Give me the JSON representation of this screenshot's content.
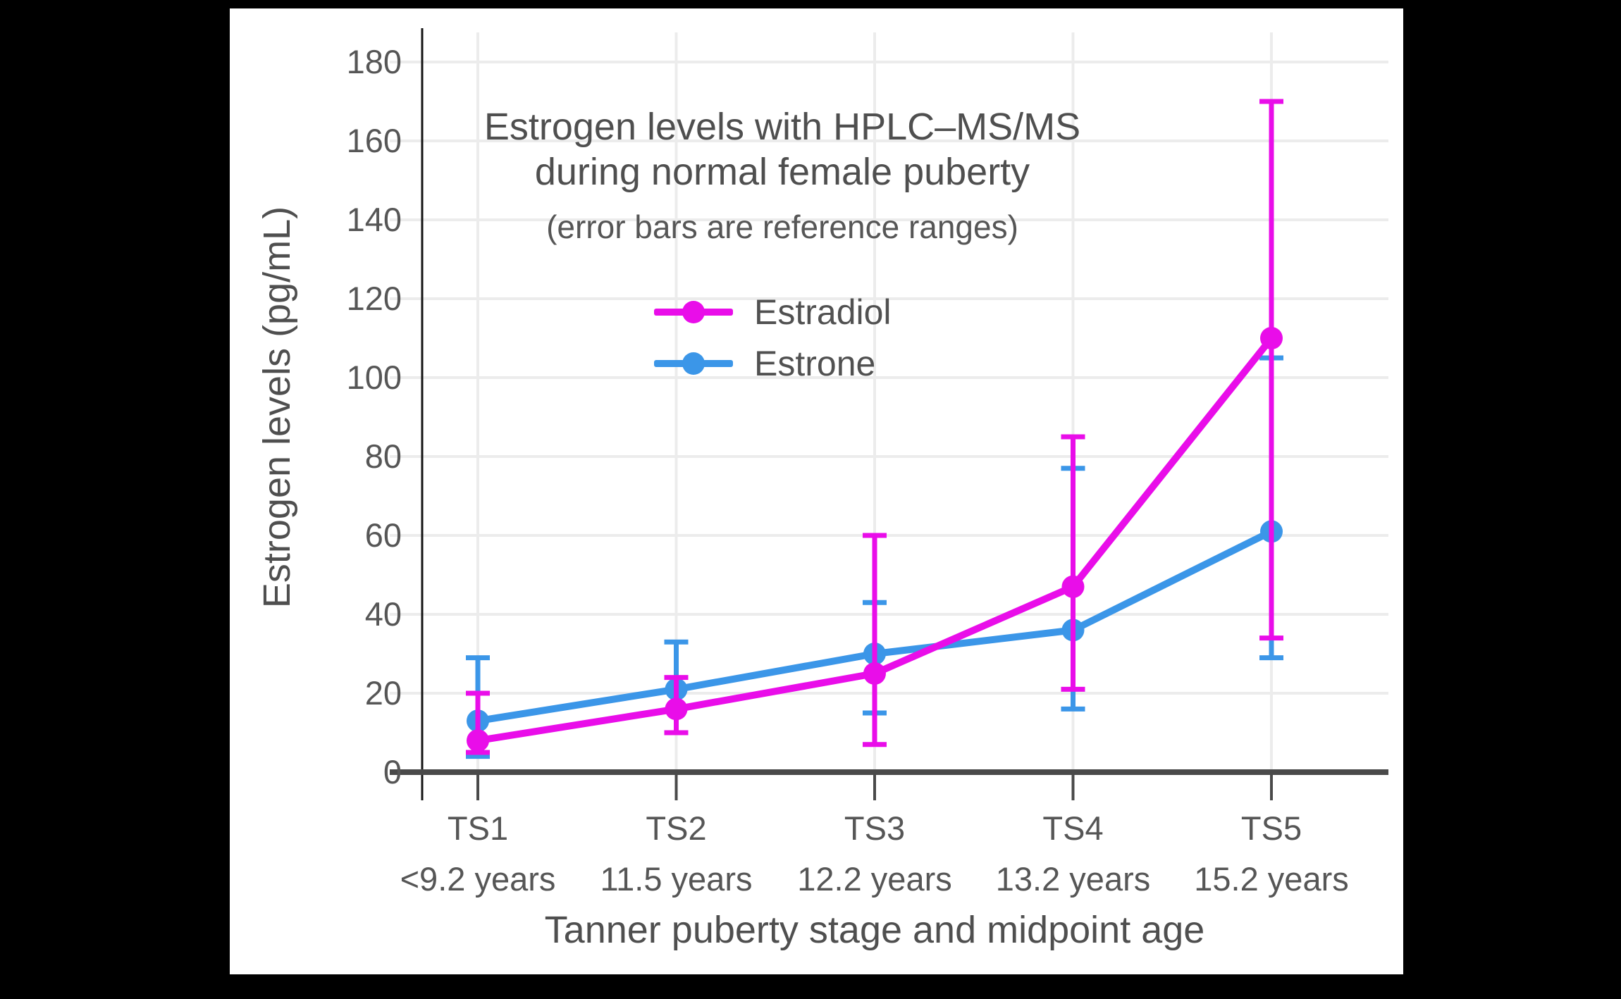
{
  "colors": {
    "estradiol": "#E90DE9",
    "estrone": "#3B96E8",
    "frame_background": "#000000",
    "canvas_background": "#FFFFFF",
    "gridline": "#ECECEC",
    "axis_line": "#4A4A4A",
    "text": "#515151"
  },
  "chart_data": {
    "type": "line",
    "title": "Estrogen levels with HPLC–MS/MS",
    "title_line2": "during normal female puberty",
    "subtitle": "(error bars are reference ranges)",
    "xlabel": "Tanner puberty stage and midpoint age",
    "ylabel": "Estrogen levels (pg/mL)",
    "error_bar_meaning": "reference ranges",
    "categories": [
      "TS1",
      "TS2",
      "TS3",
      "TS4",
      "TS5"
    ],
    "category_ages": [
      "<9.2 years",
      "11.5 years",
      "12.2 years",
      "13.2 years",
      "15.2 years"
    ],
    "yticks": [
      0,
      20,
      40,
      60,
      80,
      100,
      120,
      140,
      160,
      180
    ],
    "ylim": [
      0,
      188
    ],
    "grid": true,
    "legend_position": "upper-center",
    "series": [
      {
        "name": "Estradiol",
        "color": "#E90DE9",
        "values": [
          8,
          16,
          25,
          47,
          110
        ],
        "range_low": [
          5,
          10,
          7,
          21,
          34
        ],
        "range_high": [
          20,
          24,
          60,
          85,
          170
        ]
      },
      {
        "name": "Estrone",
        "color": "#3B96E8",
        "values": [
          13,
          21,
          30,
          36,
          61
        ],
        "range_low": [
          4,
          10,
          15,
          16,
          29
        ],
        "range_high": [
          29,
          33,
          43,
          77,
          105
        ]
      }
    ]
  }
}
